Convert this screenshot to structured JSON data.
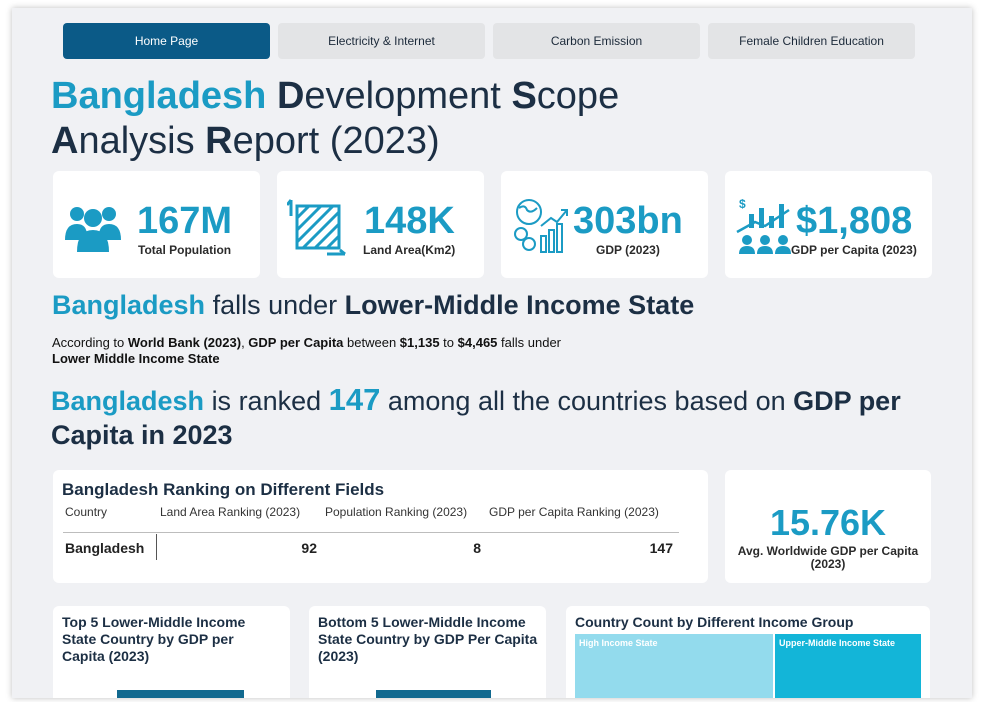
{
  "tabs": [
    {
      "label": "Home Page",
      "active": true
    },
    {
      "label": "Electricity & Internet",
      "active": false
    },
    {
      "label": "Carbon Emission",
      "active": false
    },
    {
      "label": "Female Children Education",
      "active": false
    }
  ],
  "title": {
    "w1": "Bangladesh",
    "d": "D",
    "w2": "evelopment",
    "s": "S",
    "w3": "cope",
    "a": "A",
    "w4": "nalysis",
    "r": "R",
    "w5": "eport (2023)"
  },
  "kpis": [
    {
      "value": "167M",
      "label": "Total Population",
      "icon": "people-icon"
    },
    {
      "value": "148K",
      "label": "Land Area(Km2)",
      "icon": "land-area-icon"
    },
    {
      "value": "303bn",
      "label": "GDP (2023)",
      "icon": "gdp-globe-icon"
    },
    {
      "value": "$1,808",
      "label": "GDP per Capita (2023)",
      "icon": "gdp-growth-icon"
    }
  ],
  "income_state": {
    "country": "Bangladesh",
    "text": "falls under",
    "state": "Lower-Middle Income State"
  },
  "paragraph": {
    "p1": "According to ",
    "source": "World Bank (2023)",
    "p2": ", ",
    "metric": "GDP per Capita",
    "p3": " between ",
    "low": "$1,135",
    "p4": " to ",
    "high": "$4,465",
    "p5": " falls under",
    "state": "Lower Middle Income State"
  },
  "ranking": {
    "country": "Bangladesh",
    "t1": "is ranked",
    "rank": "147",
    "t2": "among all the countries based on",
    "basis": "GDP per Capita in 2023"
  },
  "ranking_table": {
    "title": "Bangladesh Ranking on Different Fields",
    "headers": [
      "Country",
      "Land Area Ranking (2023)",
      "Population Ranking (2023)",
      "GDP per Capita Ranking (2023)"
    ],
    "row": [
      "Bangladesh",
      "92",
      "8",
      "147"
    ]
  },
  "avg_gdp": {
    "value": "15.76K",
    "label": "Avg. Worldwide GDP per Capita (2023)"
  },
  "bottom": {
    "top5_title": "Top 5 Lower-Middle Income State Country by GDP per Capita (2023)",
    "bottom5_title": "Bottom 5 Lower-Middle Income State Country by GDP Per Capita (2023)",
    "income_group_title": "Country Count by Different Income Group",
    "treemap_labels": [
      "High Income State",
      "Upper-Middle Income State"
    ]
  },
  "colors": {
    "accent": "#1b9bc4",
    "navy": "#1c2f44",
    "active_tab": "#0b5a87",
    "bar": "#11698f",
    "treemap_light": "#93dbed",
    "treemap_dark": "#13b5d8"
  }
}
